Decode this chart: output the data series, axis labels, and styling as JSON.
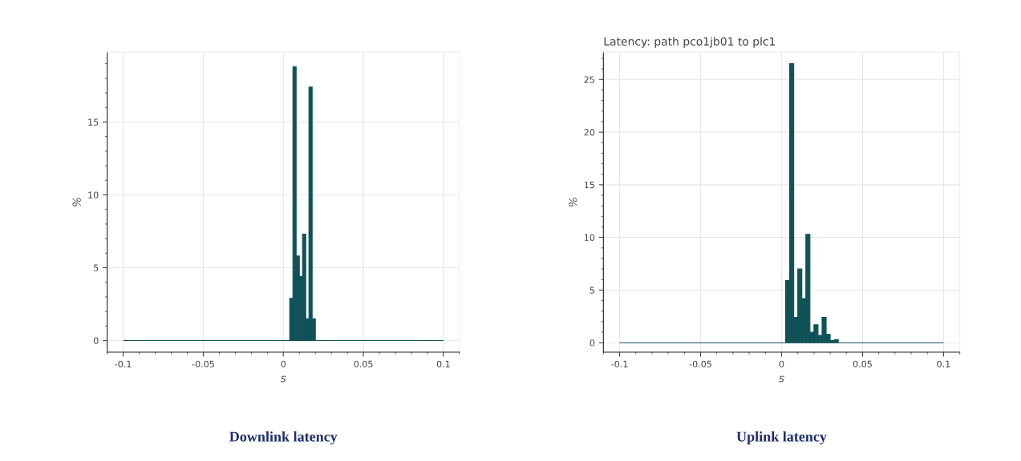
{
  "chart_data": [
    {
      "type": "histogram",
      "xlabel": "s",
      "ylabel": "%",
      "color": "#0f5257",
      "bins": [
        -0.1,
        0.004,
        0.006,
        0.008,
        0.01,
        0.012,
        0.014,
        0.016,
        0.018,
        0.02,
        0.1
      ],
      "values": [
        0,
        2.9,
        18.8,
        5.8,
        4.4,
        7.3,
        1.5,
        17.4,
        1.5,
        0
      ],
      "xlim": [
        -0.11,
        0.11
      ],
      "ylim": [
        -0.8,
        19.8
      ],
      "xticks": [
        -0.1,
        -0.05,
        0,
        0.05,
        0.1
      ],
      "yticks": [
        0,
        5,
        10,
        15
      ],
      "grid": true,
      "annotations": [
        "Downlink latency"
      ]
    },
    {
      "type": "histogram",
      "title": "Latency: path pco1jb01 to plc1",
      "xlabel": "s",
      "ylabel": "%",
      "color": "#0f5257",
      "bins": [
        -0.1,
        0.0025,
        0.005,
        0.0075,
        0.01,
        0.0125,
        0.015,
        0.0175,
        0.02,
        0.0225,
        0.025,
        0.0275,
        0.03,
        0.0325,
        0.035,
        0.1
      ],
      "values": [
        0,
        5.9,
        26.5,
        2.4,
        7.0,
        4.2,
        10.3,
        1.0,
        1.7,
        0.7,
        2.4,
        0.8,
        0.2,
        0.3,
        0
      ],
      "xlim": [
        -0.11,
        0.11
      ],
      "ylim": [
        -0.9,
        27.6
      ],
      "xticks": [
        -0.1,
        -0.05,
        0,
        0.05,
        0.1
      ],
      "yticks": [
        0,
        5,
        10,
        15,
        20,
        25
      ],
      "grid": true,
      "annotations": [
        "Uplink latency"
      ]
    }
  ]
}
